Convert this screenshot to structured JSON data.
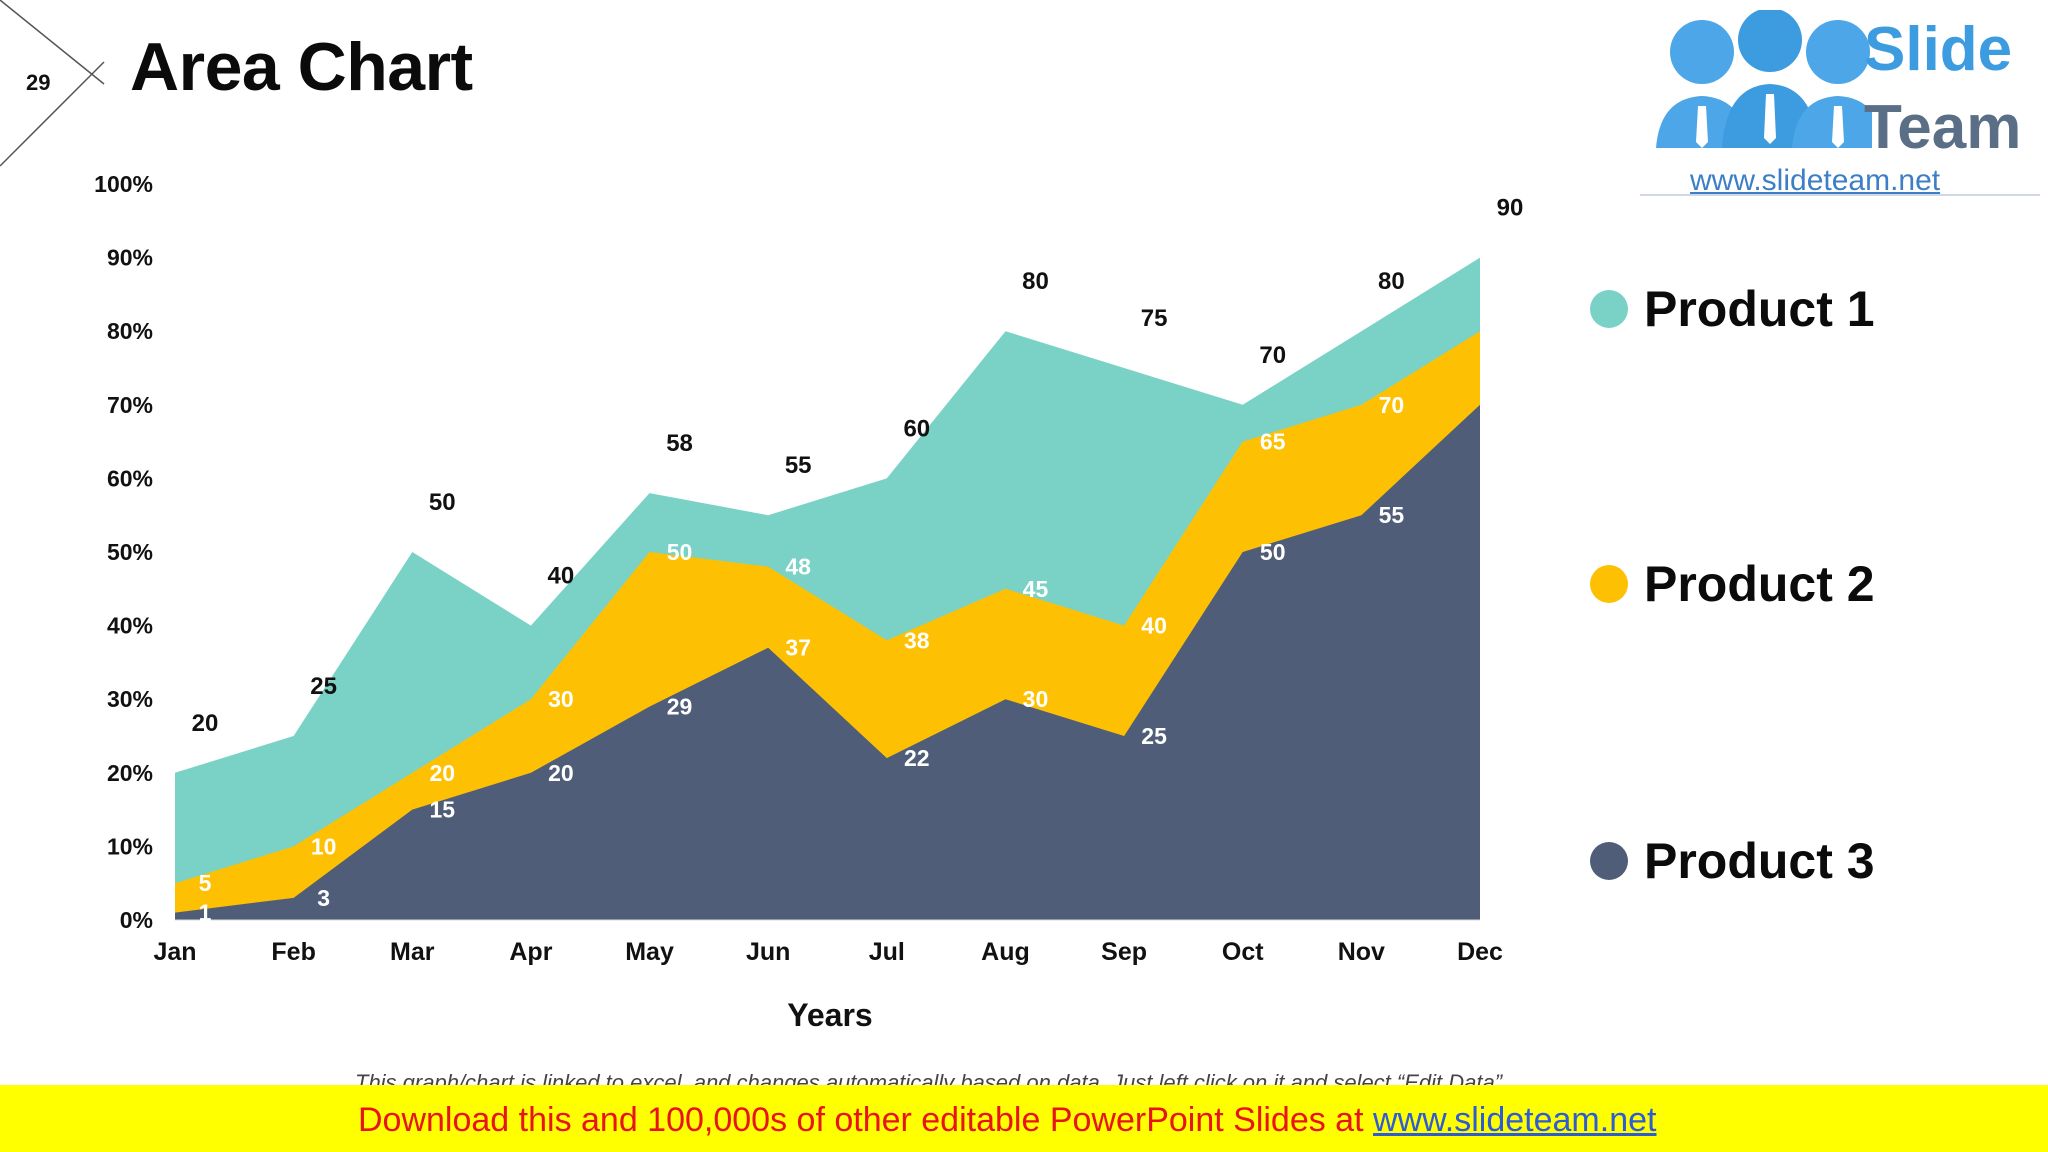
{
  "slide": {
    "number": "29",
    "title": "Area Chart"
  },
  "logo": {
    "line1": "Slide",
    "line2": "Team",
    "url": "www.slideteam.net"
  },
  "colors": {
    "product1": "#79d2c5",
    "product2": "#fec002",
    "product3": "#4f5d79"
  },
  "chart_data": {
    "type": "area",
    "stacked": false,
    "categories": [
      "Jan",
      "Feb",
      "Mar",
      "Apr",
      "May",
      "Jun",
      "Jul",
      "Aug",
      "Sep",
      "Oct",
      "Nov",
      "Dec"
    ],
    "series": [
      {
        "name": "Product 1",
        "values": [
          20,
          25,
          50,
          40,
          58,
          55,
          60,
          80,
          75,
          70,
          80,
          90
        ]
      },
      {
        "name": "Product 2",
        "values": [
          5,
          10,
          20,
          30,
          50,
          48,
          38,
          45,
          40,
          65,
          70,
          80
        ]
      },
      {
        "name": "Product 3",
        "values": [
          1,
          3,
          15,
          20,
          29,
          37,
          22,
          30,
          25,
          50,
          55,
          70
        ]
      }
    ],
    "yticks": [
      "0%",
      "10%",
      "20%",
      "30%",
      "40%",
      "50%",
      "60%",
      "70%",
      "80%",
      "90%",
      "100%"
    ],
    "ylim": [
      0,
      100
    ],
    "xlabel": "Years",
    "ylabel": "",
    "grid": false,
    "legend": "right"
  },
  "legend": {
    "items": [
      "Product 1",
      "Product 2",
      "Product 3"
    ]
  },
  "footnote": "This graph/chart is linked to excel, and changes automatically based on data. Just left click on it and select “Edit Data”.",
  "banner": {
    "text": "Download this and 100,000s of other editable PowerPoint Slides at ",
    "link": "www.slideteam.net"
  }
}
